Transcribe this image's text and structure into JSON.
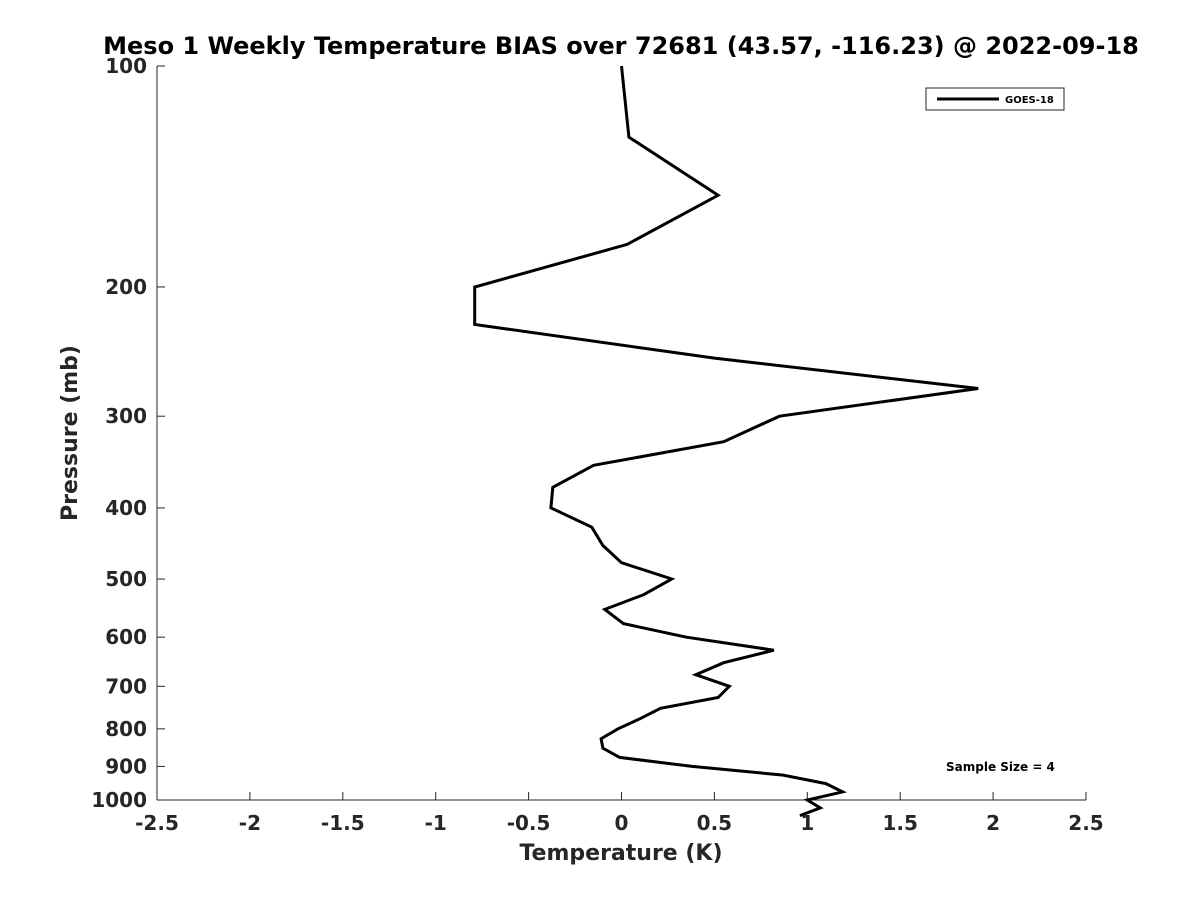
{
  "chart_data": {
    "type": "line",
    "title": "Meso 1 Weekly Temperature BIAS over 72681 (43.57, -116.23) @ 2022-09-18",
    "xlabel": "Temperature (K)",
    "ylabel": "Pressure (mb)",
    "xlim": [
      -2.5,
      2.5
    ],
    "ylim": [
      1000,
      100
    ],
    "y_scale": "log",
    "y_reversed": true,
    "grid": false,
    "legend_position": "top-right",
    "xticks": [
      -2.5,
      -2,
      -1.5,
      -1,
      -0.5,
      0,
      0.5,
      1,
      1.5,
      2,
      2.5
    ],
    "xtick_labels": [
      "-2.5",
      "-2",
      "-1.5",
      "-1",
      "-0.5",
      "0",
      "0.5",
      "1",
      "1.5",
      "2",
      "2.5"
    ],
    "yticks": [
      100,
      200,
      300,
      400,
      500,
      600,
      700,
      800,
      900,
      1000
    ],
    "ytick_labels": [
      "100",
      "200",
      "300",
      "400",
      "500",
      "600",
      "700",
      "800",
      "900",
      "1000"
    ],
    "series": [
      {
        "name": "GOES-18",
        "color": "#000000",
        "points": [
          {
            "x": 0.0,
            "p": 100
          },
          {
            "x": 0.04,
            "p": 125
          },
          {
            "x": 0.52,
            "p": 150
          },
          {
            "x": 0.03,
            "p": 175
          },
          {
            "x": -0.79,
            "p": 200
          },
          {
            "x": -0.79,
            "p": 225
          },
          {
            "x": 0.5,
            "p": 250
          },
          {
            "x": 1.92,
            "p": 275
          },
          {
            "x": 0.85,
            "p": 300
          },
          {
            "x": 0.55,
            "p": 325
          },
          {
            "x": -0.15,
            "p": 350
          },
          {
            "x": -0.37,
            "p": 375
          },
          {
            "x": -0.38,
            "p": 400
          },
          {
            "x": -0.16,
            "p": 425
          },
          {
            "x": -0.1,
            "p": 450
          },
          {
            "x": 0.0,
            "p": 475
          },
          {
            "x": 0.27,
            "p": 500
          },
          {
            "x": 0.12,
            "p": 525
          },
          {
            "x": -0.09,
            "p": 550
          },
          {
            "x": 0.01,
            "p": 575
          },
          {
            "x": 0.35,
            "p": 600
          },
          {
            "x": 0.82,
            "p": 625
          },
          {
            "x": 0.55,
            "p": 650
          },
          {
            "x": 0.4,
            "p": 675
          },
          {
            "x": 0.58,
            "p": 700
          },
          {
            "x": 0.52,
            "p": 725
          },
          {
            "x": 0.21,
            "p": 750
          },
          {
            "x": 0.1,
            "p": 775
          },
          {
            "x": -0.02,
            "p": 800
          },
          {
            "x": -0.11,
            "p": 825
          },
          {
            "x": -0.1,
            "p": 850
          },
          {
            "x": -0.01,
            "p": 875
          },
          {
            "x": 0.38,
            "p": 900
          },
          {
            "x": 0.87,
            "p": 925
          },
          {
            "x": 1.1,
            "p": 950
          },
          {
            "x": 1.19,
            "p": 975
          },
          {
            "x": 1.0,
            "p": 1000
          },
          {
            "x": 1.07,
            "p": 1025
          },
          {
            "x": 0.96,
            "p": 1050
          }
        ]
      }
    ],
    "annotations": [
      "Sample Size = 4"
    ]
  }
}
